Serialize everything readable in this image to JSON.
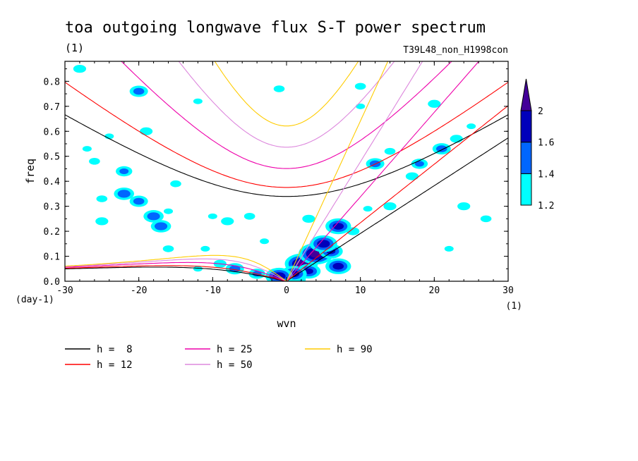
{
  "chart_data": {
    "type": "contour",
    "title": "toa outgoing longwave flux S-T power spectrum",
    "subtitle_left": "(1)",
    "subtitle_right": "T39L48_non_H1998con",
    "xlabel": "wvn",
    "ylabel": "freq",
    "x_unit": "(1)",
    "y_unit": "(day-1)",
    "xlim": [
      -30,
      30
    ],
    "ylim": [
      0,
      0.88
    ],
    "x_ticks": [
      -30,
      -20,
      -10,
      0,
      10,
      20,
      30
    ],
    "x_tick_labels": [
      "-30",
      "-20",
      "-10",
      "0",
      "10",
      "20",
      "30"
    ],
    "y_ticks": [
      0,
      0.1,
      0.2,
      0.3,
      0.4,
      0.5,
      0.6,
      0.7,
      0.8
    ],
    "y_tick_labels": [
      "0.0",
      "0.1",
      "0.2",
      "0.3",
      "0.4",
      "0.5",
      "0.6",
      "0.7",
      "0.8"
    ],
    "colorbar": {
      "levels": [
        1.2,
        1.4,
        1.6,
        2
      ],
      "labels": [
        "1.2",
        "1.4",
        "1.6",
        "2"
      ],
      "colors": [
        "#00ffff",
        "#0066ff",
        "#0000bb",
        "#440099"
      ]
    },
    "dispersion_curves": [
      {
        "label": "h =  8",
        "h": 8,
        "color": "#000000"
      },
      {
        "label": "h = 12",
        "h": 12,
        "color": "#ff0000"
      },
      {
        "label": "h = 25",
        "h": 25,
        "color": "#ee00aa"
      },
      {
        "label": "h = 50",
        "h": 50,
        "color": "#dd88dd"
      },
      {
        "label": "h = 90",
        "h": 90,
        "color": "#ffcc00"
      }
    ],
    "contour_blobs": [
      {
        "x": 0.5,
        "y": 0.01,
        "level": 4
      },
      {
        "x": 2,
        "y": 0.07,
        "level": 4
      },
      {
        "x": 4,
        "y": 0.11,
        "level": 4
      },
      {
        "x": 6,
        "y": 0.12,
        "level": 3
      },
      {
        "x": 7,
        "y": 0.06,
        "level": 3
      },
      {
        "x": 5,
        "y": 0.15,
        "level": 3
      },
      {
        "x": 3,
        "y": 0.04,
        "level": 3
      },
      {
        "x": 1,
        "y": 0.03,
        "level": 3
      },
      {
        "x": -1,
        "y": 0.02,
        "level": 3
      },
      {
        "x": -4,
        "y": 0.03,
        "level": 2
      },
      {
        "x": -7,
        "y": 0.05,
        "level": 2
      },
      {
        "x": -9,
        "y": 0.07,
        "level": 1
      },
      {
        "x": -12,
        "y": 0.05,
        "level": 1
      },
      {
        "x": 7,
        "y": 0.22,
        "level": 3
      },
      {
        "x": 9,
        "y": 0.2,
        "level": 1
      },
      {
        "x": 11,
        "y": 0.29,
        "level": 1
      },
      {
        "x": 12,
        "y": 0.47,
        "level": 2
      },
      {
        "x": 17,
        "y": 0.42,
        "level": 1
      },
      {
        "x": 18,
        "y": 0.47,
        "level": 2
      },
      {
        "x": 21,
        "y": 0.53,
        "level": 2
      },
      {
        "x": 23,
        "y": 0.57,
        "level": 1
      },
      {
        "x": 25,
        "y": 0.62,
        "level": 1
      },
      {
        "x": 27,
        "y": 0.25,
        "level": 1
      },
      {
        "x": 24,
        "y": 0.3,
        "level": 1
      },
      {
        "x": 22,
        "y": 0.13,
        "level": 1
      },
      {
        "x": 14,
        "y": 0.52,
        "level": 1
      },
      {
        "x": 14,
        "y": 0.3,
        "level": 1
      },
      {
        "x": 10,
        "y": 0.7,
        "level": 1
      },
      {
        "x": -1,
        "y": 0.77,
        "level": 1
      },
      {
        "x": -22,
        "y": 0.35,
        "level": 2
      },
      {
        "x": -22,
        "y": 0.44,
        "level": 2
      },
      {
        "x": -20,
        "y": 0.32,
        "level": 2
      },
      {
        "x": -18,
        "y": 0.26,
        "level": 2
      },
      {
        "x": -16,
        "y": 0.28,
        "level": 1
      },
      {
        "x": -15,
        "y": 0.39,
        "level": 1
      },
      {
        "x": -8,
        "y": 0.24,
        "level": 1
      },
      {
        "x": -10,
        "y": 0.26,
        "level": 1
      },
      {
        "x": -5,
        "y": 0.26,
        "level": 1
      },
      {
        "x": -17,
        "y": 0.22,
        "level": 2
      },
      {
        "x": -24,
        "y": 0.58,
        "level": 1
      },
      {
        "x": -26,
        "y": 0.48,
        "level": 1
      },
      {
        "x": -19,
        "y": 0.6,
        "level": 1
      },
      {
        "x": -12,
        "y": 0.72,
        "level": 1
      },
      {
        "x": -20,
        "y": 0.76,
        "level": 2
      },
      {
        "x": -28,
        "y": 0.85,
        "level": 1
      },
      {
        "x": -11,
        "y": 0.13,
        "level": 1
      },
      {
        "x": -16,
        "y": 0.13,
        "level": 1
      },
      {
        "x": -25,
        "y": 0.24,
        "level": 1
      },
      {
        "x": -27,
        "y": 0.53,
        "level": 1
      },
      {
        "x": -25,
        "y": 0.33,
        "level": 1
      },
      {
        "x": 3,
        "y": 0.25,
        "level": 1
      },
      {
        "x": -3,
        "y": 0.16,
        "level": 1
      },
      {
        "x": 10,
        "y": 0.78,
        "level": 1
      },
      {
        "x": 20,
        "y": 0.71,
        "level": 1
      }
    ]
  }
}
